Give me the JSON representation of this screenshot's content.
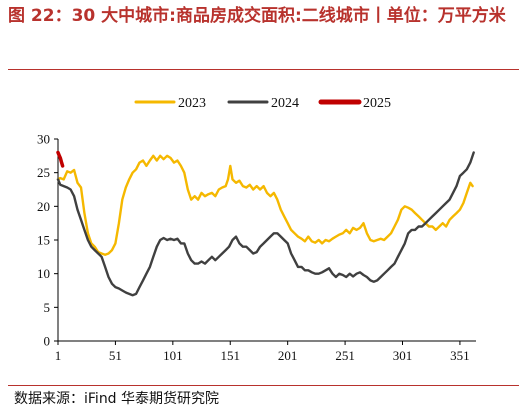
{
  "title": "图 22：30 大中城市:商品房成交面积:二线城市丨单位：万平方米",
  "source": "数据来源：iFind 华泰期货研究院",
  "chart_data": {
    "type": "line",
    "xlim": [
      1,
      365
    ],
    "ylim": [
      0,
      30
    ],
    "xticks": [
      1,
      51,
      101,
      151,
      201,
      251,
      301,
      351
    ],
    "yticks": [
      0,
      5,
      10,
      15,
      20,
      25,
      30
    ],
    "legend_position": "top-center",
    "series": [
      {
        "name": "2023",
        "color": "#f5b800",
        "points": [
          [
            1,
            24.0
          ],
          [
            3,
            24.2
          ],
          [
            6,
            24.0
          ],
          [
            9,
            25.2
          ],
          [
            12,
            25.0
          ],
          [
            15,
            25.4
          ],
          [
            18,
            23.5
          ],
          [
            21,
            22.8
          ],
          [
            24,
            19.0
          ],
          [
            27,
            16.0
          ],
          [
            30,
            14.5
          ],
          [
            33,
            14.0
          ],
          [
            36,
            13.2
          ],
          [
            39,
            13.0
          ],
          [
            42,
            12.8
          ],
          [
            45,
            13.0
          ],
          [
            48,
            13.5
          ],
          [
            51,
            14.5
          ],
          [
            54,
            17.5
          ],
          [
            57,
            21.0
          ],
          [
            60,
            22.8
          ],
          [
            63,
            24.0
          ],
          [
            66,
            25.0
          ],
          [
            69,
            25.5
          ],
          [
            72,
            26.5
          ],
          [
            75,
            26.8
          ],
          [
            78,
            26.0
          ],
          [
            81,
            26.8
          ],
          [
            84,
            27.5
          ],
          [
            87,
            26.8
          ],
          [
            90,
            27.5
          ],
          [
            93,
            27.0
          ],
          [
            96,
            27.5
          ],
          [
            99,
            27.2
          ],
          [
            102,
            26.5
          ],
          [
            105,
            26.8
          ],
          [
            108,
            26.0
          ],
          [
            111,
            25.0
          ],
          [
            114,
            22.5
          ],
          [
            117,
            21.0
          ],
          [
            120,
            21.5
          ],
          [
            123,
            21.0
          ],
          [
            126,
            22.0
          ],
          [
            129,
            21.5
          ],
          [
            132,
            21.8
          ],
          [
            135,
            22.0
          ],
          [
            138,
            21.5
          ],
          [
            141,
            22.5
          ],
          [
            144,
            22.8
          ],
          [
            147,
            23.0
          ],
          [
            149,
            24.0
          ],
          [
            151,
            26.0
          ],
          [
            153,
            24.0
          ],
          [
            156,
            23.5
          ],
          [
            159,
            23.8
          ],
          [
            162,
            23.0
          ],
          [
            165,
            22.8
          ],
          [
            168,
            23.2
          ],
          [
            171,
            22.5
          ],
          [
            174,
            23.0
          ],
          [
            177,
            22.5
          ],
          [
            180,
            23.0
          ],
          [
            183,
            22.0
          ],
          [
            186,
            21.5
          ],
          [
            189,
            22.0
          ],
          [
            192,
            21.0
          ],
          [
            195,
            19.5
          ],
          [
            198,
            18.5
          ],
          [
            201,
            17.5
          ],
          [
            204,
            16.5
          ],
          [
            207,
            16.0
          ],
          [
            210,
            15.5
          ],
          [
            213,
            15.2
          ],
          [
            216,
            14.8
          ],
          [
            219,
            15.5
          ],
          [
            222,
            14.8
          ],
          [
            225,
            14.6
          ],
          [
            228,
            15.0
          ],
          [
            231,
            14.5
          ],
          [
            234,
            15.0
          ],
          [
            237,
            14.8
          ],
          [
            240,
            15.2
          ],
          [
            243,
            15.5
          ],
          [
            246,
            15.8
          ],
          [
            249,
            16.0
          ],
          [
            252,
            16.5
          ],
          [
            255,
            16.0
          ],
          [
            258,
            16.8
          ],
          [
            261,
            16.5
          ],
          [
            264,
            16.8
          ],
          [
            267,
            17.5
          ],
          [
            270,
            16.0
          ],
          [
            273,
            15.0
          ],
          [
            276,
            14.8
          ],
          [
            279,
            15.0
          ],
          [
            282,
            15.2
          ],
          [
            285,
            15.0
          ],
          [
            288,
            15.5
          ],
          [
            291,
            16.0
          ],
          [
            294,
            17.0
          ],
          [
            297,
            18.0
          ],
          [
            300,
            19.5
          ],
          [
            303,
            20.0
          ],
          [
            306,
            19.8
          ],
          [
            309,
            19.5
          ],
          [
            312,
            19.0
          ],
          [
            315,
            18.5
          ],
          [
            318,
            18.0
          ],
          [
            321,
            17.5
          ],
          [
            324,
            17.0
          ],
          [
            327,
            17.0
          ],
          [
            330,
            16.5
          ],
          [
            333,
            17.0
          ],
          [
            336,
            17.5
          ],
          [
            339,
            17.0
          ],
          [
            342,
            18.0
          ],
          [
            345,
            18.5
          ],
          [
            348,
            19.0
          ],
          [
            351,
            19.5
          ],
          [
            354,
            20.5
          ],
          [
            357,
            22.0
          ],
          [
            360,
            23.5
          ],
          [
            362,
            23.0
          ]
        ]
      },
      {
        "name": "2024",
        "color": "#404040",
        "points": [
          [
            1,
            24.0
          ],
          [
            3,
            23.2
          ],
          [
            6,
            23.0
          ],
          [
            9,
            22.8
          ],
          [
            12,
            22.5
          ],
          [
            15,
            21.5
          ],
          [
            18,
            19.5
          ],
          [
            21,
            18.0
          ],
          [
            24,
            16.5
          ],
          [
            27,
            15.0
          ],
          [
            30,
            14.0
          ],
          [
            33,
            13.5
          ],
          [
            36,
            13.0
          ],
          [
            39,
            12.5
          ],
          [
            42,
            11.0
          ],
          [
            45,
            9.5
          ],
          [
            48,
            8.5
          ],
          [
            51,
            8.0
          ],
          [
            54,
            7.8
          ],
          [
            57,
            7.5
          ],
          [
            60,
            7.2
          ],
          [
            63,
            7.0
          ],
          [
            66,
            6.8
          ],
          [
            69,
            7.0
          ],
          [
            72,
            8.0
          ],
          [
            75,
            9.0
          ],
          [
            78,
            10.0
          ],
          [
            81,
            11.0
          ],
          [
            84,
            12.5
          ],
          [
            87,
            14.0
          ],
          [
            90,
            15.0
          ],
          [
            93,
            15.3
          ],
          [
            96,
            15.0
          ],
          [
            99,
            15.2
          ],
          [
            102,
            15.0
          ],
          [
            105,
            15.2
          ],
          [
            108,
            14.5
          ],
          [
            111,
            14.5
          ],
          [
            114,
            13.0
          ],
          [
            117,
            12.0
          ],
          [
            120,
            11.5
          ],
          [
            123,
            11.5
          ],
          [
            126,
            11.8
          ],
          [
            129,
            11.5
          ],
          [
            132,
            12.0
          ],
          [
            135,
            12.5
          ],
          [
            138,
            12.0
          ],
          [
            141,
            12.5
          ],
          [
            144,
            13.0
          ],
          [
            147,
            13.5
          ],
          [
            150,
            14.0
          ],
          [
            153,
            15.0
          ],
          [
            156,
            15.5
          ],
          [
            159,
            14.5
          ],
          [
            162,
            14.0
          ],
          [
            165,
            14.0
          ],
          [
            168,
            13.5
          ],
          [
            171,
            13.0
          ],
          [
            174,
            13.2
          ],
          [
            177,
            14.0
          ],
          [
            180,
            14.5
          ],
          [
            183,
            15.0
          ],
          [
            186,
            15.5
          ],
          [
            189,
            16.0
          ],
          [
            192,
            16.0
          ],
          [
            195,
            15.5
          ],
          [
            198,
            15.0
          ],
          [
            201,
            14.5
          ],
          [
            204,
            13.0
          ],
          [
            207,
            12.0
          ],
          [
            210,
            11.0
          ],
          [
            213,
            11.0
          ],
          [
            216,
            10.5
          ],
          [
            219,
            10.5
          ],
          [
            222,
            10.2
          ],
          [
            225,
            10.0
          ],
          [
            228,
            10.0
          ],
          [
            231,
            10.2
          ],
          [
            234,
            10.5
          ],
          [
            237,
            10.8
          ],
          [
            240,
            10.0
          ],
          [
            243,
            9.5
          ],
          [
            246,
            10.0
          ],
          [
            249,
            9.8
          ],
          [
            252,
            9.5
          ],
          [
            255,
            10.0
          ],
          [
            258,
            9.6
          ],
          [
            261,
            10.0
          ],
          [
            264,
            10.2
          ],
          [
            267,
            9.8
          ],
          [
            270,
            9.5
          ],
          [
            273,
            9.0
          ],
          [
            276,
            8.8
          ],
          [
            279,
            9.0
          ],
          [
            282,
            9.5
          ],
          [
            285,
            10.0
          ],
          [
            288,
            10.5
          ],
          [
            291,
            11.0
          ],
          [
            294,
            11.5
          ],
          [
            297,
            12.5
          ],
          [
            300,
            13.5
          ],
          [
            303,
            14.5
          ],
          [
            306,
            16.0
          ],
          [
            309,
            16.5
          ],
          [
            312,
            16.5
          ],
          [
            315,
            17.0
          ],
          [
            318,
            17.0
          ],
          [
            321,
            17.5
          ],
          [
            324,
            18.0
          ],
          [
            327,
            18.5
          ],
          [
            330,
            19.0
          ],
          [
            333,
            19.5
          ],
          [
            336,
            20.0
          ],
          [
            339,
            20.5
          ],
          [
            342,
            21.0
          ],
          [
            345,
            22.0
          ],
          [
            348,
            23.0
          ],
          [
            351,
            24.5
          ],
          [
            354,
            25.0
          ],
          [
            357,
            25.5
          ],
          [
            360,
            26.5
          ],
          [
            363,
            28.0
          ]
        ]
      },
      {
        "name": "2025",
        "color": "#c00000",
        "points": [
          [
            1,
            28.0
          ],
          [
            2,
            27.6
          ],
          [
            3,
            27.2
          ],
          [
            4,
            26.6
          ],
          [
            5,
            26.0
          ]
        ]
      }
    ]
  }
}
